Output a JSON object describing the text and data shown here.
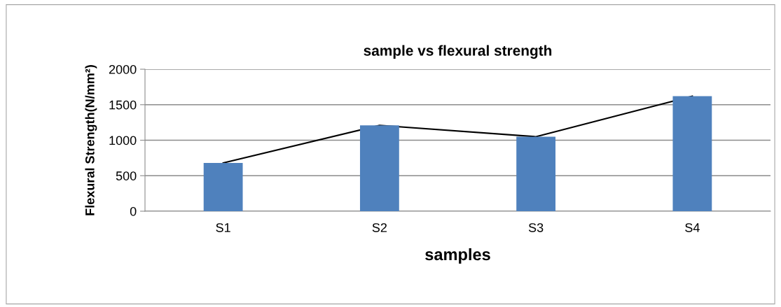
{
  "chart_data": {
    "type": "bar",
    "title": "sample vs flexural strength",
    "xlabel": "samples",
    "ylabel": "Flexural Strength(N/mm²)",
    "categories": [
      "S1",
      "S2",
      "S3",
      "S4"
    ],
    "series": [
      {
        "color": "#4f81bd",
        "values": [
          680,
          1210,
          1050,
          1620
        ]
      },
      {
        "type": "line",
        "color": "#000000",
        "values": [
          680,
          1210,
          1050,
          1620
        ]
      }
    ],
    "ylim": [
      0,
      2000
    ],
    "yticks": [
      0,
      500,
      1000,
      1500,
      2000
    ],
    "grid": "y",
    "legend": false,
    "marker": "none",
    "line_style": "solid"
  }
}
